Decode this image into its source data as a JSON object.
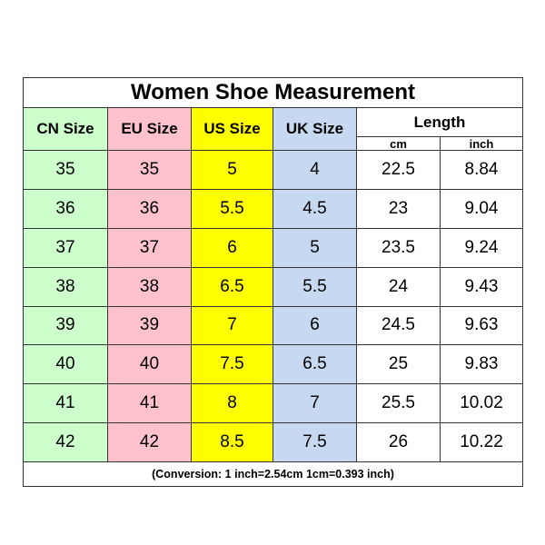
{
  "table": {
    "title": "Women Shoe Measurement",
    "headers": [
      "CN Size",
      "EU Size",
      "US Size",
      "UK Size"
    ],
    "length_header": "Length",
    "length_units": [
      "cm",
      "inch"
    ],
    "rows": [
      [
        35,
        35,
        5,
        4,
        22.5,
        8.84
      ],
      [
        36,
        36,
        5.5,
        4.5,
        23,
        9.04
      ],
      [
        37,
        37,
        6,
        5,
        23.5,
        9.24
      ],
      [
        38,
        38,
        6.5,
        5.5,
        24,
        9.43
      ],
      [
        39,
        39,
        7,
        6,
        24.5,
        9.63
      ],
      [
        40,
        40,
        7.5,
        6.5,
        25,
        9.83
      ],
      [
        41,
        41,
        8,
        7,
        25.5,
        10.02
      ],
      [
        42,
        42,
        8.5,
        7.5,
        26,
        10.22
      ]
    ],
    "footer": "(Conversion: 1 inch=2.54cm  1cm=0.393 inch)"
  }
}
